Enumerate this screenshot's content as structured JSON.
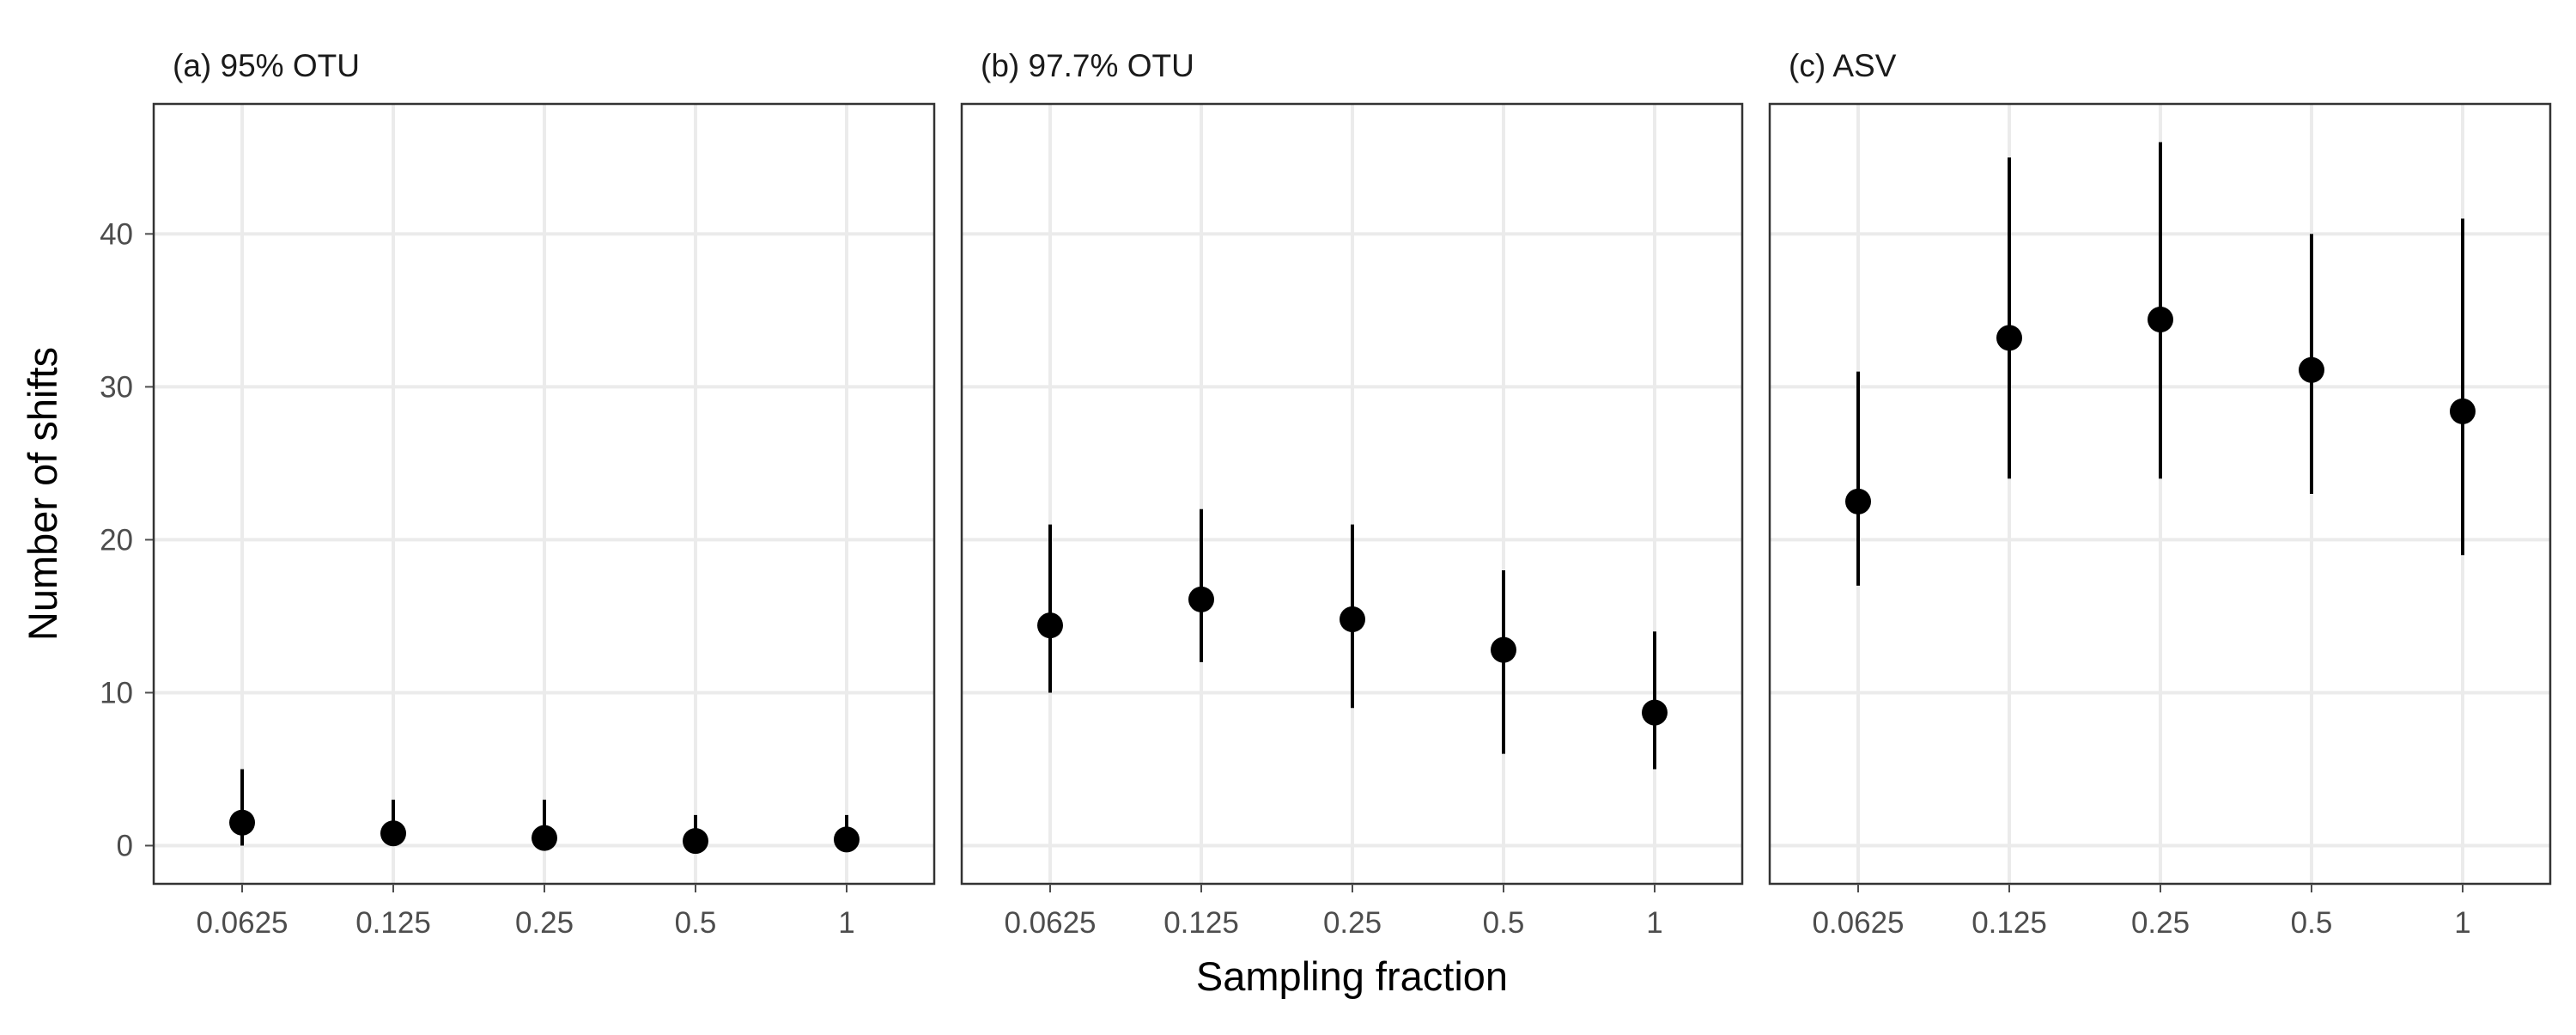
{
  "chart_data": {
    "type": "scatter",
    "shared": {
      "xlabel": "Sampling fraction",
      "ylabel": "Number of shifts",
      "categories": [
        "0.0625",
        "0.125",
        "0.25",
        "0.5",
        "1"
      ],
      "ylim": [
        -2.5,
        48.5
      ],
      "yticks": [
        0,
        10,
        20,
        30,
        40
      ],
      "grid": true,
      "legend": "none"
    },
    "panels": [
      {
        "title": "(a) 95% OTU",
        "series": {
          "mean": [
            1.5,
            0.8,
            0.5,
            0.3,
            0.4
          ],
          "lower": [
            0,
            0,
            0,
            0,
            0
          ],
          "upper": [
            5,
            3,
            3,
            2,
            2
          ]
        }
      },
      {
        "title": "(b) 97.7% OTU",
        "series": {
          "mean": [
            14.4,
            16.1,
            14.8,
            12.8,
            8.7
          ],
          "lower": [
            10,
            12,
            9,
            6,
            5
          ],
          "upper": [
            21,
            22,
            21,
            18,
            14
          ]
        }
      },
      {
        "title": "(c) ASV",
        "series": {
          "mean": [
            22.5,
            33.2,
            34.4,
            31.1,
            28.4
          ],
          "lower": [
            17,
            24,
            24,
            23,
            19
          ],
          "upper": [
            31,
            45,
            46,
            40,
            41
          ]
        }
      }
    ],
    "colors": {
      "point": "#000000",
      "errorbar": "#000000",
      "grid": "#ebebeb",
      "panel_border": "#333333",
      "tick_text": "#4d4d4d",
      "title_text": "#1a1a1a"
    }
  }
}
